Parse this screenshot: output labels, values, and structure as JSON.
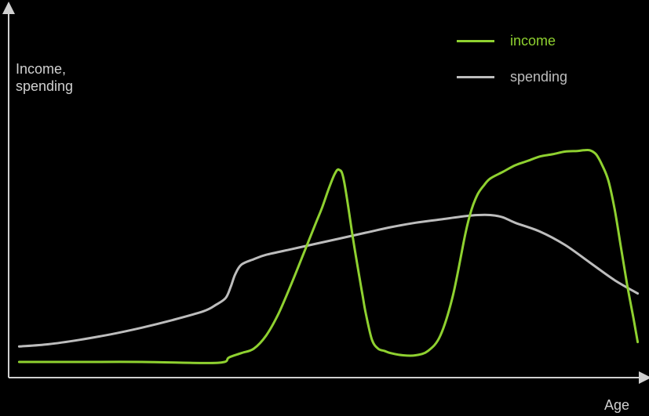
{
  "chart_data": {
    "type": "line",
    "xlabel": "Age",
    "ylabel": "Income,\nspending",
    "xlim": [
      0,
      100
    ],
    "ylim": [
      0,
      100
    ],
    "grid": false,
    "legend_position": "top-right",
    "series": [
      {
        "name": "income",
        "color": "#8fd130",
        "x": [
          0.3,
          10,
          20,
          30,
          33.3,
          34,
          36,
          38,
          40,
          42,
          44,
          46,
          48,
          49,
          50,
          51,
          51.7,
          52.5,
          54,
          55,
          55.5,
          56,
          57,
          58,
          59,
          60,
          62,
          64,
          66,
          68,
          70,
          72,
          73,
          74,
          75,
          76,
          78,
          80,
          82,
          84,
          86,
          88,
          90,
          91,
          92,
          93,
          94,
          95,
          96,
          97,
          98,
          99,
          99.7
        ],
        "y": [
          0,
          0,
          0,
          -0.5,
          0,
          2,
          4,
          6,
          12,
          22,
          35,
          49,
          63,
          70,
          78,
          85,
          87,
          82,
          55,
          38,
          30,
          22,
          10,
          6,
          5,
          4,
          3,
          3,
          5,
          12,
          30,
          58,
          69,
          76,
          80,
          83,
          86,
          89,
          91,
          93,
          94,
          95.2,
          95.5,
          95.8,
          95.8,
          94,
          89,
          82,
          69,
          52,
          35,
          20,
          9
        ]
      },
      {
        "name": "spending",
        "color": "#bdbdbd",
        "x": [
          0.3,
          5,
          10,
          15,
          20,
          25,
          30,
          32,
          33.5,
          34.3,
          35,
          36,
          38,
          40,
          44,
          48,
          52,
          56,
          60,
          64,
          68,
          72,
          74,
          76,
          78,
          80,
          84,
          88,
          92,
          96,
          99.7
        ],
        "y": [
          7,
          8,
          10,
          12.5,
          15.5,
          19,
          23,
          26,
          29,
          34,
          39.5,
          44,
          46.5,
          48.5,
          51,
          53.5,
          56,
          58.5,
          61,
          63,
          64.5,
          66,
          66.5,
          66.5,
          65.5,
          63,
          59,
          53,
          45,
          37,
          31
        ]
      }
    ]
  }
}
